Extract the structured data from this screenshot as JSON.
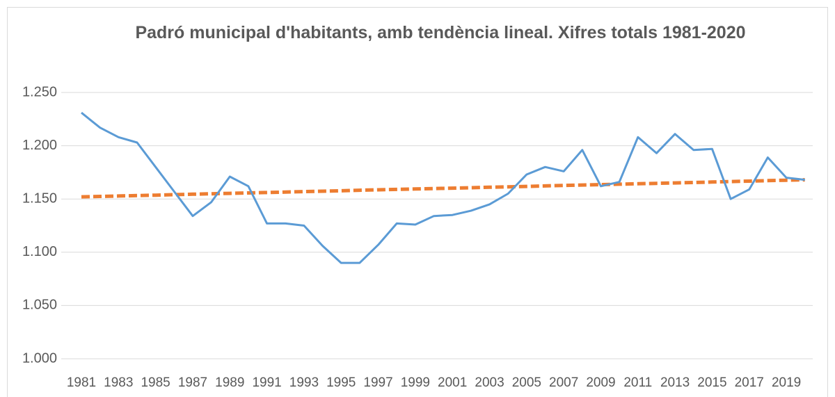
{
  "chart_data": {
    "type": "line",
    "title": "Padró municipal d'habitants, amb tendència lineal. Xifres totals 1981-2020",
    "categories": [
      "1981",
      null,
      "1983",
      null,
      "1985",
      null,
      "1987",
      null,
      "1989",
      null,
      "1991",
      null,
      "1993",
      null,
      "1995",
      null,
      "1997",
      null,
      "1999",
      null,
      "2001",
      null,
      "2003",
      null,
      "2005",
      null,
      "2007",
      null,
      "2009",
      null,
      "2011",
      null,
      "2013",
      null,
      "2015",
      null,
      "2017",
      null,
      "2019",
      null
    ],
    "series": [
      {
        "color": "#5b9bd5",
        "values": [
          1231,
          1217,
          1208,
          1203,
          1180,
          1157,
          1134,
          1147,
          1171,
          1162,
          1127,
          1127,
          1125,
          1106,
          1090,
          1090,
          1107,
          1127,
          1126,
          1134,
          1135,
          1139,
          1145,
          1155,
          1173,
          1180,
          1176,
          1196,
          1162,
          1166,
          1208,
          1193,
          1211,
          1196,
          1197,
          1150,
          1159,
          1189,
          1170,
          1168
        ]
      },
      {
        "color": "#ed7d31",
        "dashed": true,
        "values": [
          1152.0,
          1152.4,
          1152.8,
          1153.2,
          1153.6,
          1154.1,
          1154.5,
          1154.9,
          1155.3,
          1155.7,
          1156.1,
          1156.5,
          1156.9,
          1157.3,
          1157.7,
          1158.2,
          1158.6,
          1159.0,
          1159.4,
          1159.8,
          1160.2,
          1160.6,
          1161.0,
          1161.4,
          1161.8,
          1162.3,
          1162.7,
          1163.1,
          1163.5,
          1163.9,
          1164.3,
          1164.7,
          1165.1,
          1165.5,
          1165.9,
          1166.4,
          1166.8,
          1167.2,
          1167.6,
          1168.0
        ]
      }
    ],
    "ylim": [
      1000,
      1250
    ],
    "yticks": [
      {
        "value": 1000,
        "label": "1.000"
      },
      {
        "value": 1050,
        "label": "1.050"
      },
      {
        "value": 1100,
        "label": "1.100"
      },
      {
        "value": 1150,
        "label": "1.150"
      },
      {
        "value": 1200,
        "label": "1.200"
      },
      {
        "value": 1250,
        "label": "1.250"
      }
    ],
    "grid": true
  }
}
